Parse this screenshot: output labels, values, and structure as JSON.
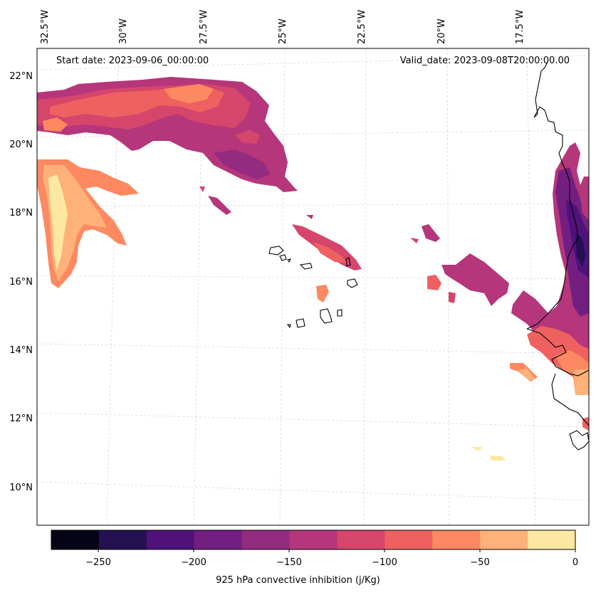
{
  "map": {
    "start_date_text": "Start date: 2023-09-06_00:00:00",
    "valid_date_text": "Valid_date: 2023-09-08T20:00:00.00",
    "lon_labels": [
      "32.5°W",
      "30°W",
      "27.5°W",
      "25°W",
      "22.5°W",
      "20°W",
      "17.5°W"
    ],
    "lat_labels": [
      "22°N",
      "20°N",
      "18°N",
      "16°N",
      "14°N",
      "12°N",
      "10°N"
    ],
    "colors": {
      "coast": "#000000",
      "grid": "#cccccc"
    }
  },
  "colorbar": {
    "label": "925 hPa convective inhibition (j/Kg)",
    "ticks": [
      "−250",
      "−200",
      "−150",
      "−100",
      "−50",
      "0"
    ],
    "colors": [
      "#050416",
      "#231151",
      "#4f127b",
      "#721f81",
      "#932b80",
      "#b5367a",
      "#d6456c",
      "#ef6160",
      "#fc8961",
      "#feb179",
      "#fde8a3"
    ]
  }
}
